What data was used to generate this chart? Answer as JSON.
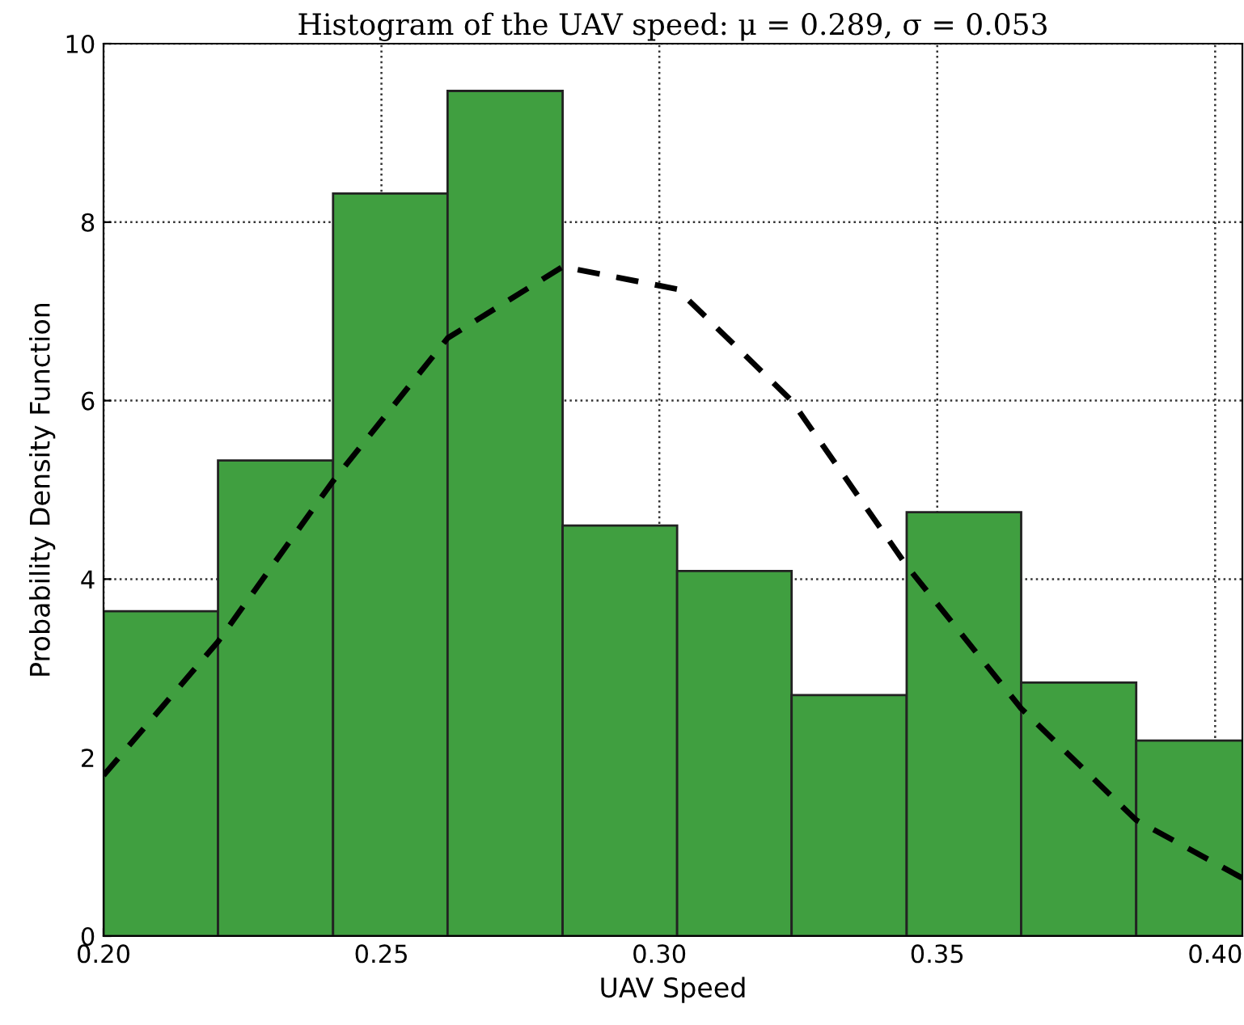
{
  "chart_data": {
    "type": "histogram",
    "title": "Histogram of the UAV speed: μ = 0.289, σ = 0.053",
    "xlabel": "UAV Speed",
    "ylabel": "Probability Density Function",
    "bins": [
      0.2,
      0.2206,
      0.2413,
      0.2619,
      0.2826,
      0.3032,
      0.3238,
      0.3445,
      0.3651,
      0.3858,
      0.4064
    ],
    "values": [
      3.64,
      5.33,
      8.32,
      9.47,
      4.6,
      4.09,
      2.7,
      4.75,
      2.84,
      2.19
    ],
    "color": "#409f40",
    "series": [
      {
        "type": "line",
        "color": "#000000",
        "line_style": "dashed",
        "x": [
          0.2,
          0.2206,
          0.2413,
          0.2619,
          0.2826,
          0.3032,
          0.3238,
          0.3445,
          0.3651,
          0.3858,
          0.4049
        ],
        "values": [
          1.8,
          3.3,
          5.1,
          6.7,
          7.5,
          7.25,
          6.0,
          4.15,
          2.55,
          1.3,
          0.65
        ]
      }
    ],
    "xlim": [
      0.2,
      0.4049
    ],
    "xticks": [
      {
        "value": 0.2,
        "label": "0.20"
      },
      {
        "value": 0.25,
        "label": "0.25"
      },
      {
        "value": 0.3,
        "label": "0.30"
      },
      {
        "value": 0.35,
        "label": "0.35"
      },
      {
        "value": 0.4,
        "label": "0.40"
      }
    ],
    "ylim": [
      0,
      10
    ],
    "yticks": [
      0,
      2,
      4,
      6,
      8,
      10
    ],
    "grid": true
  }
}
